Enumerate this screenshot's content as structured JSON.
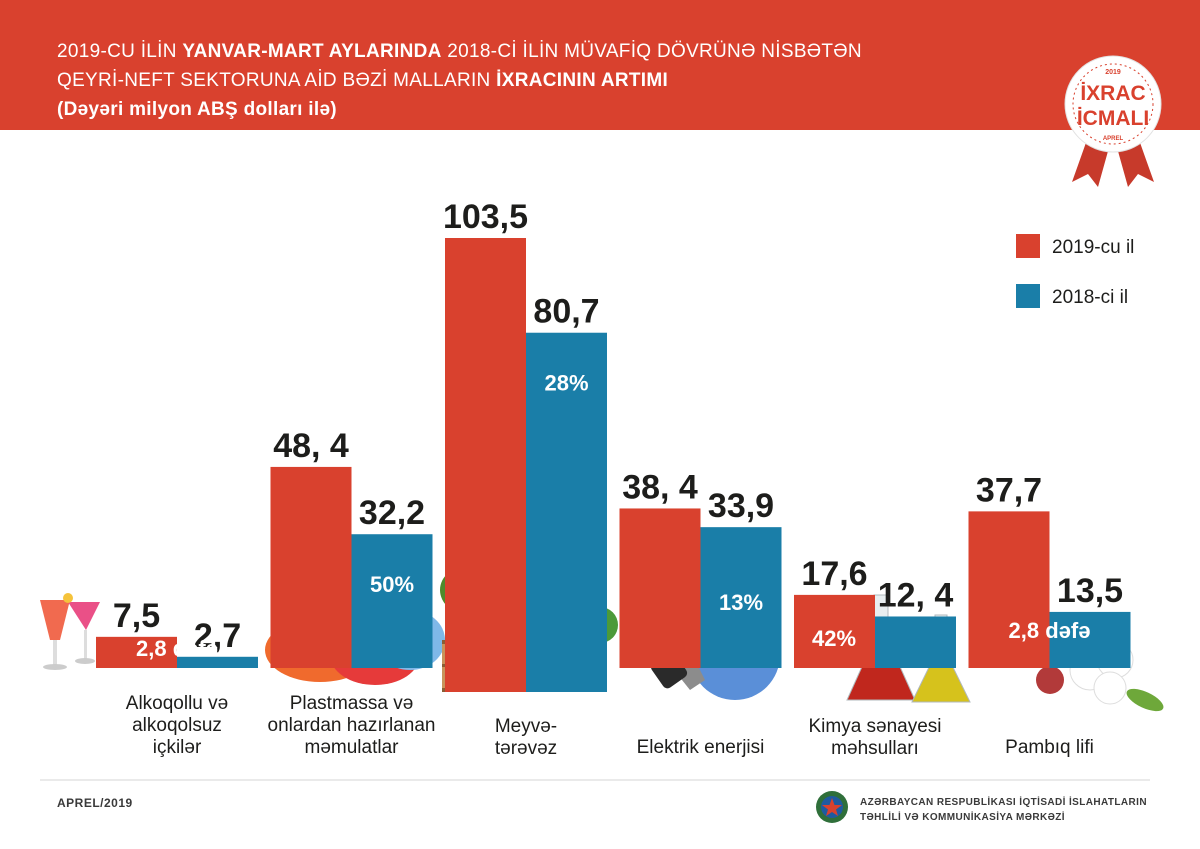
{
  "header": {
    "line1_a": "2019-CU İLİN ",
    "line1_b": "YANVAR-MART AYLARINDA",
    "line1_c": "  2018-Cİ İLİN MÜVAFİQ DÖVRÜNƏ NİSBƏTƏN",
    "line2_a": "QEYRİ-NEFT SEKTORUNA AİD BƏZİ MALLARIN ",
    "line2_b": "İXRACININ ARTIMI",
    "line3": "(Dəyəri milyon ABŞ dolları ilə)"
  },
  "badge": {
    "year": "2019",
    "line1": "İXRAC",
    "line2": "İCMALI",
    "month": "APREL"
  },
  "colors": {
    "series2019": "#d9412e",
    "series2018": "#1a7ea8",
    "header": "#d9412e"
  },
  "chart_data": {
    "type": "bar",
    "categories": [
      [
        "Alkoqollu və",
        "alkoqolsuz",
        "içkilər"
      ],
      [
        "Plastmassa və",
        "onlardan hazırlanan",
        "məmulatlar"
      ],
      [
        "Meyvə-",
        "tərəvəz"
      ],
      [
        "Elektrik enerjisi"
      ],
      [
        "Kimya sənayesi",
        "məhsulları"
      ],
      [
        "Pambıq lifi"
      ]
    ],
    "series": [
      {
        "name": "2019-cu il",
        "values": [
          7.5,
          48.4,
          103.5,
          38.4,
          17.6,
          37.7
        ],
        "labels": [
          "7,5",
          "48, 4",
          "103,5",
          "38, 4",
          "17,6",
          "37,7"
        ]
      },
      {
        "name": "2018-ci il",
        "values": [
          2.7,
          32.2,
          80.7,
          33.9,
          12.4,
          13.5
        ],
        "labels": [
          "2,7",
          "32,2",
          "80,7",
          "33,9",
          "12, 4",
          "13,5"
        ]
      }
    ],
    "growth_labels": [
      "2,8 dəfə",
      "50%",
      "28%",
      "13%",
      "42%",
      "2,8 dəfə"
    ],
    "ylim": [
      0,
      110
    ],
    "legend": "top-right"
  },
  "footer": {
    "date": "APREL/2019",
    "org_line1": "AZƏRBAYCAN RESPUBLİKASI İQTİSADİ İSLAHATLARIN",
    "org_line2": "TƏHLİLİ VƏ KOMMUNİKASİYA MƏRKƏZİ"
  }
}
